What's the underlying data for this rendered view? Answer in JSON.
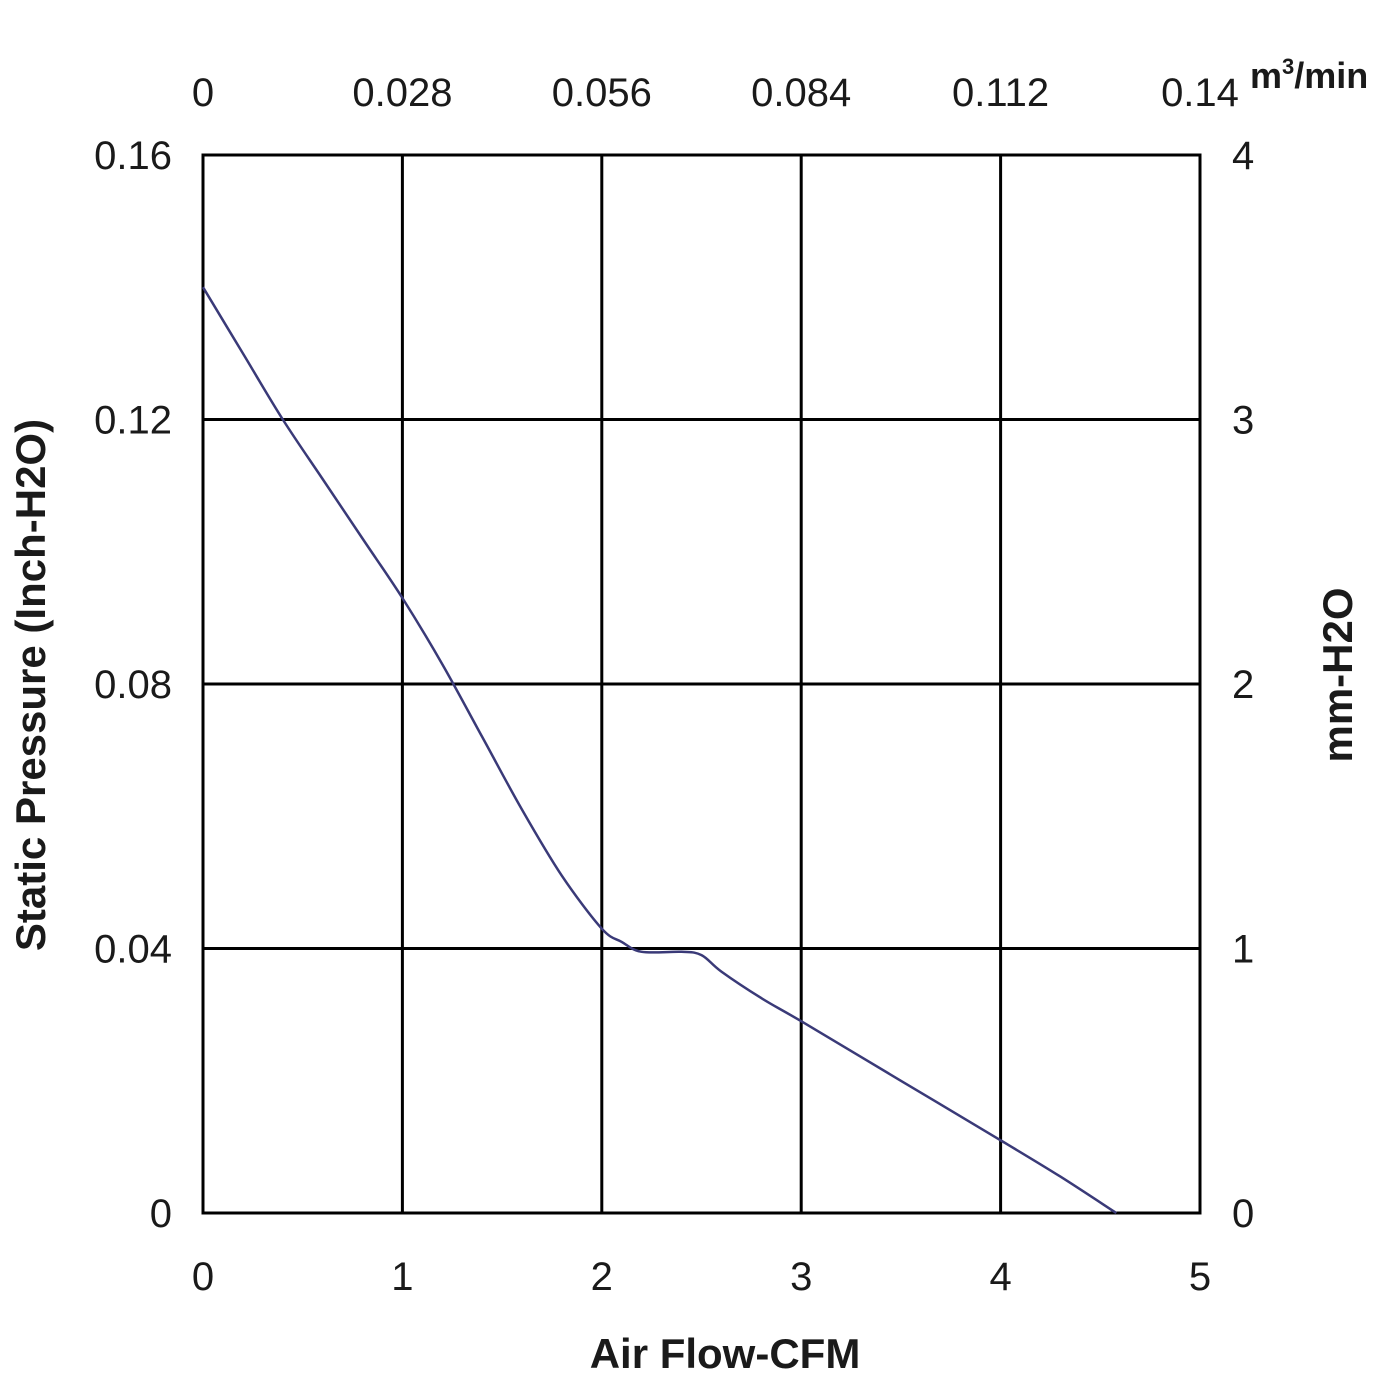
{
  "chart_data": {
    "type": "line",
    "xlabel": "Air Flow-CFM",
    "ylabel": "Static Pressure (Inch-H2O)",
    "y2label": "mm-H2O",
    "x2label": "m³/min",
    "x2label_base": "m",
    "x2label_sup": "3",
    "x2label_rest": "/min",
    "xlim": [
      0,
      5
    ],
    "ylim": [
      0,
      0.16
    ],
    "x_ticks": [
      "0",
      "1",
      "2",
      "3",
      "4",
      "5"
    ],
    "y_ticks": [
      "0",
      "0.04",
      "0.08",
      "0.12",
      "0.16"
    ],
    "x2_ticks": [
      "0",
      "0.028",
      "0.056",
      "0.084",
      "0.112",
      "0.14"
    ],
    "y2_ticks": [
      "0",
      "1",
      "2",
      "3",
      "4"
    ],
    "grid": true,
    "line_color": "#3a3a78",
    "series": [
      {
        "x": [
          0,
          0.2,
          0.4,
          0.6,
          0.8,
          1.0,
          1.2,
          1.4,
          1.6,
          1.8,
          2.0,
          2.1,
          2.2,
          2.4,
          2.5,
          2.6,
          2.8,
          3.0,
          3.5,
          4.0,
          4.3,
          4.58
        ],
        "values": [
          0.14,
          0.13,
          0.12,
          0.111,
          0.102,
          0.093,
          0.083,
          0.072,
          0.061,
          0.051,
          0.043,
          0.041,
          0.0395,
          0.0395,
          0.039,
          0.0365,
          0.0325,
          0.029,
          0.02,
          0.011,
          0.0055,
          0.0
        ]
      }
    ]
  }
}
